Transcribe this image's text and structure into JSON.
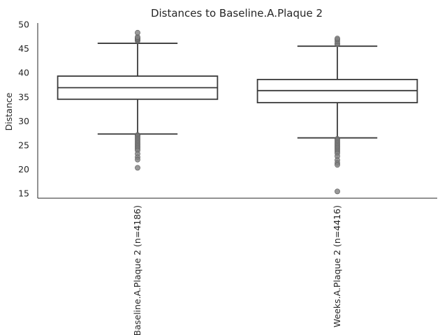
{
  "chart_data": {
    "type": "box",
    "title": "Distances to Baseline.A.Plaque 2",
    "xlabel": "",
    "ylabel": "Distance",
    "ylim": [
      14,
      50.3
    ],
    "yticks": [
      15,
      20,
      25,
      30,
      35,
      40,
      45,
      50
    ],
    "categories": [
      "Baseline.A.Plaque 2 (n=4186)",
      "Weeks.A.Plaque 2 (n=4416)"
    ],
    "boxes": [
      {
        "name": "Baseline.A.Plaque 2 (n=4186)",
        "whisker_low": 27.3,
        "q1": 34.5,
        "median": 36.9,
        "q3": 39.3,
        "whisker_high": 46.1,
        "outliers_high": [
          46.6,
          46.8,
          47.0,
          47.2,
          47.4,
          48.3
        ],
        "outliers_low": [
          27.1,
          26.9,
          26.6,
          26.3,
          26.0,
          25.7,
          25.4,
          25.1,
          24.8,
          24.5,
          24.2,
          23.9,
          23.2,
          22.5,
          22.0,
          20.3
        ]
      },
      {
        "name": "Weeks.A.Plaque 2 (n=4416)",
        "whisker_low": 26.5,
        "q1": 33.8,
        "median": 36.3,
        "q3": 38.6,
        "whisker_high": 45.5,
        "outliers_high": [
          45.9,
          46.1,
          46.5,
          46.9,
          47.1
        ],
        "outliers_low": [
          26.3,
          26.0,
          25.7,
          25.4,
          25.1,
          24.8,
          24.5,
          24.2,
          23.9,
          23.6,
          23.3,
          22.7,
          21.9,
          21.3,
          20.9,
          15.4
        ]
      }
    ]
  }
}
